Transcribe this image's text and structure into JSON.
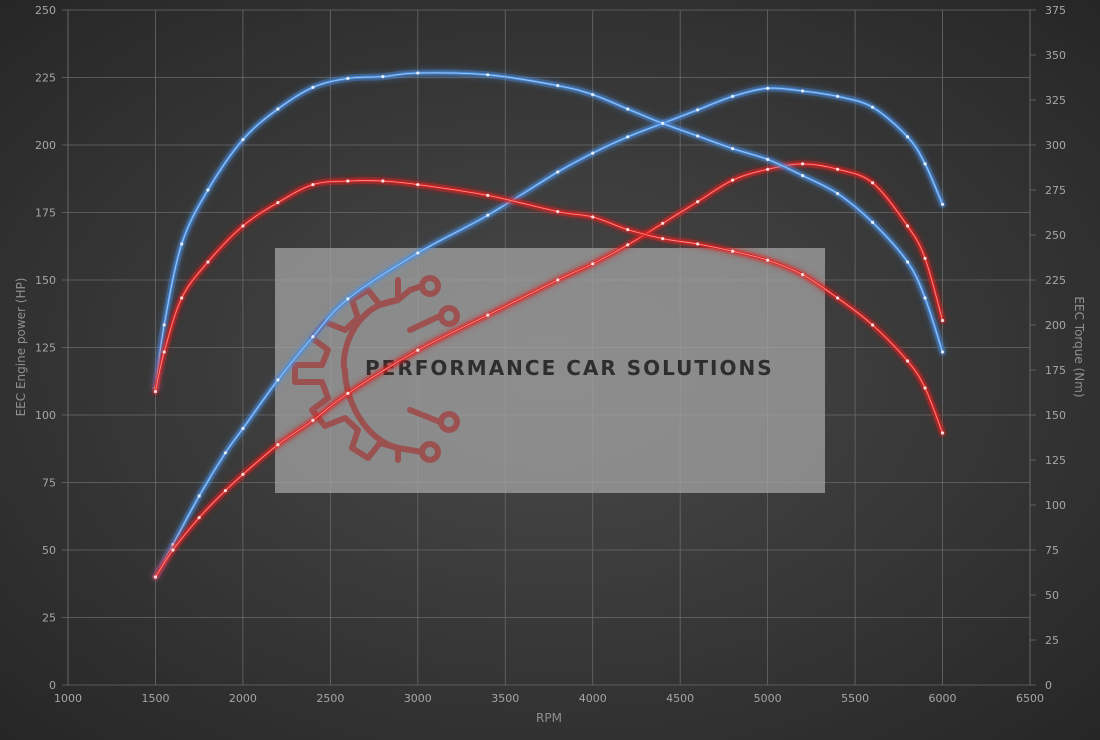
{
  "chart_data": {
    "type": "line",
    "title": "",
    "xlabel": "RPM",
    "ylabel_left": "EEC Engine power (HP)",
    "ylabel_right": "EEC Torque (Nm)",
    "xlim": [
      1000,
      6500
    ],
    "ylim_left": [
      0,
      250
    ],
    "ylim_right": [
      0,
      375
    ],
    "x_ticks": [
      "1000",
      "1500",
      "2000",
      "2500",
      "3000",
      "3500",
      "4000",
      "4500",
      "5000",
      "5500",
      "6000",
      "6500"
    ],
    "y_left_ticks": [
      "0",
      "25",
      "50",
      "75",
      "100",
      "125",
      "150",
      "175",
      "200",
      "225",
      "250"
    ],
    "y_right_ticks": [
      "0",
      "25",
      "50",
      "75",
      "100",
      "125",
      "150",
      "175",
      "200",
      "225",
      "250",
      "275",
      "300",
      "325",
      "350",
      "375"
    ],
    "grid": true,
    "legend": "none",
    "series": [
      {
        "axis": "left",
        "color": "#4a90e2",
        "x": [
          1500,
          1600,
          1750,
          1900,
          2000,
          2200,
          2400,
          2600,
          3000,
          3400,
          3800,
          4000,
          4200,
          4400,
          4600,
          4800,
          5000,
          5200,
          5400,
          5600,
          5800,
          5900,
          6000
        ],
        "values": [
          40,
          52,
          70,
          86,
          95,
          113,
          129,
          143,
          160,
          174,
          190,
          197,
          203,
          208,
          213,
          218,
          221,
          220,
          218,
          214,
          203,
          193,
          178
        ]
      },
      {
        "axis": "left",
        "color": "#e02020",
        "x": [
          1500,
          1600,
          1750,
          1900,
          2000,
          2200,
          2400,
          2600,
          3000,
          3400,
          3800,
          4000,
          4200,
          4400,
          4600,
          4800,
          5000,
          5200,
          5400,
          5600,
          5800,
          5900,
          6000
        ],
        "values": [
          40,
          50,
          62,
          72,
          78,
          89,
          98,
          108,
          124,
          137,
          150,
          156,
          163,
          171,
          179,
          187,
          191,
          193,
          191,
          186,
          170,
          158,
          135
        ]
      },
      {
        "axis": "right",
        "color": "#4a90e2",
        "x": [
          1500,
          1550,
          1650,
          1800,
          2000,
          2200,
          2400,
          2600,
          2800,
          3000,
          3400,
          3800,
          4000,
          4200,
          4400,
          4600,
          4800,
          5000,
          5200,
          5400,
          5600,
          5800,
          5900,
          6000
        ],
        "values": [
          165,
          200,
          245,
          275,
          303,
          320,
          332,
          337,
          338,
          340,
          339,
          333,
          328,
          320,
          312,
          305,
          298,
          292,
          283,
          273,
          257,
          235,
          215,
          185
        ]
      },
      {
        "axis": "right",
        "color": "#e02020",
        "x": [
          1500,
          1550,
          1650,
          1800,
          2000,
          2200,
          2400,
          2600,
          2800,
          3000,
          3400,
          3800,
          4000,
          4200,
          4400,
          4600,
          4800,
          5000,
          5200,
          5400,
          5600,
          5800,
          5900,
          6000
        ],
        "values": [
          163,
          185,
          215,
          235,
          255,
          268,
          278,
          280,
          280,
          278,
          272,
          263,
          260,
          253,
          248,
          245,
          241,
          236,
          228,
          215,
          200,
          180,
          165,
          140
        ]
      }
    ]
  },
  "watermark": {
    "text": "PERFORMANCE CAR SOLUTIONS",
    "box_color": "#a8a8a8",
    "logo_color": "#a04848",
    "logo_icon": "gear-circuit-logo"
  }
}
